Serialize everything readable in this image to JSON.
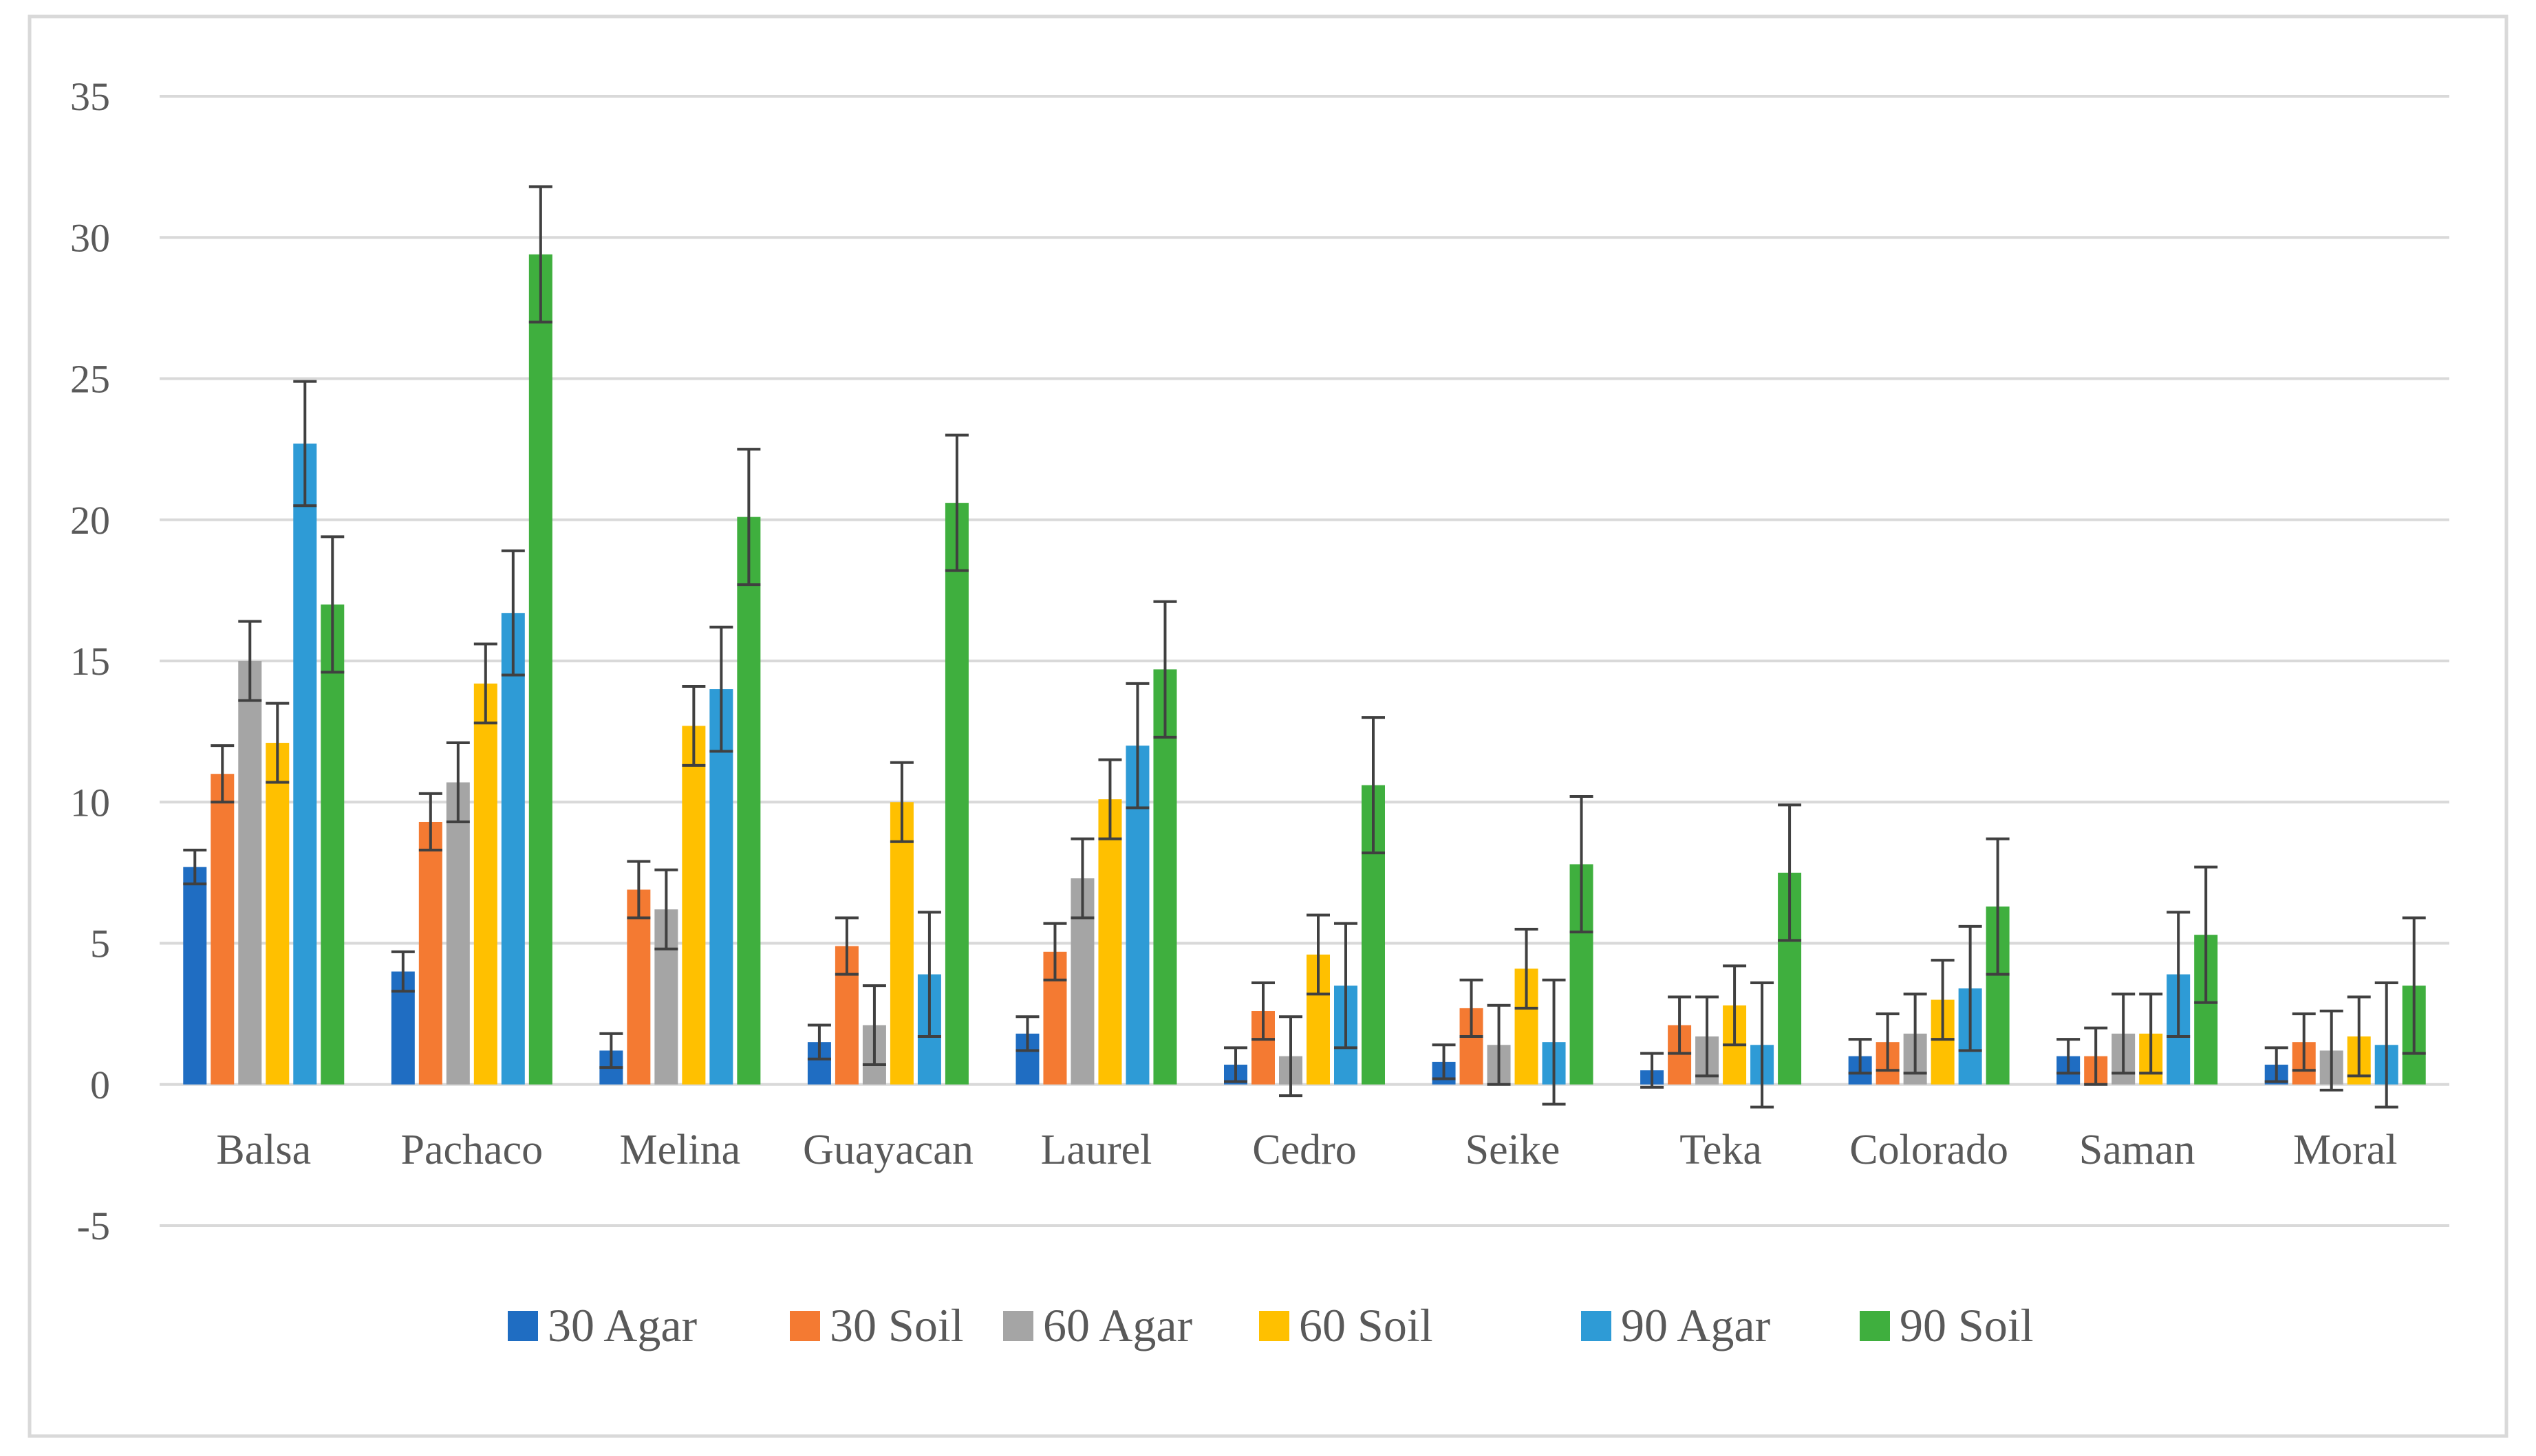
{
  "chart_data": {
    "type": "bar",
    "title": "",
    "xlabel": "",
    "ylabel": "",
    "ylim": [
      -5,
      35
    ],
    "yticks": [
      -5,
      0,
      5,
      10,
      15,
      20,
      25,
      30,
      35
    ],
    "grid": true,
    "legend_position": "bottom",
    "categories": [
      "Balsa",
      "Pachaco",
      "Melina",
      "Guayacan",
      "Laurel",
      "Cedro",
      "Seike",
      "Teka",
      "Colorado",
      "Saman",
      "Moral"
    ],
    "series": [
      {
        "name": "30 Agar",
        "color": "#1F6DC2",
        "values": [
          7.7,
          4.0,
          1.2,
          1.5,
          1.8,
          0.7,
          0.8,
          0.5,
          1.0,
          1.0,
          0.7
        ],
        "errors": [
          0.6,
          0.7,
          0.6,
          0.6,
          0.6,
          0.6,
          0.6,
          0.6,
          0.6,
          0.6,
          0.6
        ]
      },
      {
        "name": "30 Soil",
        "color": "#F47A32",
        "values": [
          11.0,
          9.3,
          6.9,
          4.9,
          4.7,
          2.6,
          2.7,
          2.1,
          1.5,
          1.0,
          1.5
        ],
        "errors": [
          1.0,
          1.0,
          1.0,
          1.0,
          1.0,
          1.0,
          1.0,
          1.0,
          1.0,
          1.0,
          1.0
        ]
      },
      {
        "name": "60 Agar",
        "color": "#A5A5A5",
        "values": [
          15.0,
          10.7,
          6.2,
          2.1,
          7.3,
          1.0,
          1.4,
          1.7,
          1.8,
          1.8,
          1.2
        ],
        "errors": [
          1.4,
          1.4,
          1.4,
          1.4,
          1.4,
          1.4,
          1.4,
          1.4,
          1.4,
          1.4,
          1.4
        ]
      },
      {
        "name": "60 Soil",
        "color": "#FFC000",
        "values": [
          12.1,
          14.2,
          12.7,
          10.0,
          10.1,
          4.6,
          4.1,
          2.8,
          3.0,
          1.8,
          1.7
        ],
        "errors": [
          1.4,
          1.4,
          1.4,
          1.4,
          1.4,
          1.4,
          1.4,
          1.4,
          1.4,
          1.4,
          1.4
        ]
      },
      {
        "name": "90 Agar",
        "color": "#2E9BD6",
        "values": [
          22.7,
          16.7,
          14.0,
          3.9,
          12.0,
          3.5,
          1.5,
          1.4,
          3.4,
          3.9,
          1.4
        ],
        "errors": [
          2.2,
          2.2,
          2.2,
          2.2,
          2.2,
          2.2,
          2.2,
          2.2,
          2.2,
          2.2,
          2.2
        ]
      },
      {
        "name": "90 Soil",
        "color": "#3FAF3E",
        "values": [
          17.0,
          29.4,
          20.1,
          20.6,
          14.7,
          10.6,
          7.8,
          7.5,
          6.3,
          5.3,
          3.5
        ],
        "errors": [
          2.4,
          2.4,
          2.4,
          2.4,
          2.4,
          2.4,
          2.4,
          2.4,
          2.4,
          2.4,
          2.4
        ]
      }
    ]
  }
}
